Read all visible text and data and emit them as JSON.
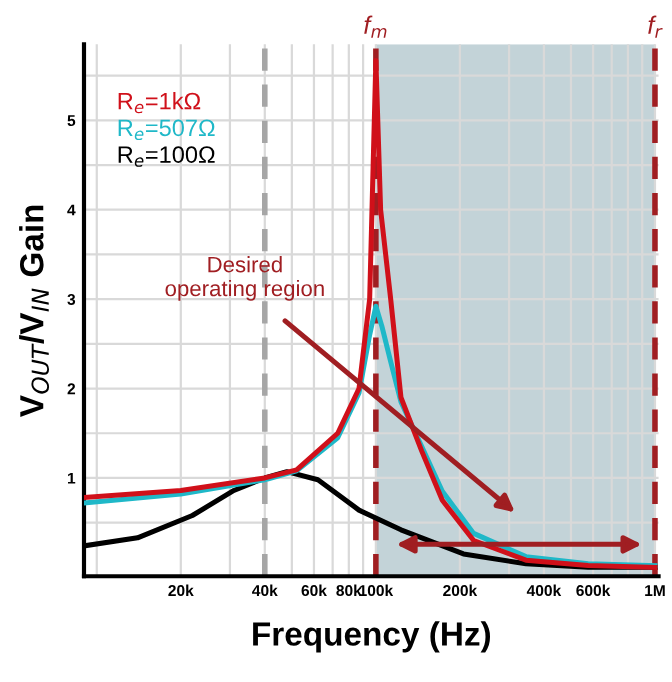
{
  "chart_data": {
    "type": "line",
    "xlabel": "Frequency (Hz)",
    "ylabel": "V$_{OUT}$/V$_{IN}$ Gain",
    "log": "x",
    "xlim": [
      9000,
      1030000
    ],
    "ylim": [
      -0.1,
      5.85
    ],
    "xticks": [
      {
        "value": 10000,
        "label": null
      },
      {
        "value": 20000,
        "label": "20k"
      },
      {
        "value": 30000,
        "label": null
      },
      {
        "value": 40000,
        "label": "40k"
      },
      {
        "value": 50000,
        "label": null
      },
      {
        "value": 60000,
        "label": "60k"
      },
      {
        "value": 70000,
        "label": null
      },
      {
        "value": 80000,
        "label": "80k"
      },
      {
        "value": 90000,
        "label": null
      },
      {
        "value": 100000,
        "label": "100k"
      },
      {
        "value": 200000,
        "label": "200k"
      },
      {
        "value": 300000,
        "label": null
      },
      {
        "value": 400000,
        "label": "400k"
      },
      {
        "value": 500000,
        "label": null
      },
      {
        "value": 600000,
        "label": "600k"
      },
      {
        "value": 700000,
        "label": null
      },
      {
        "value": 800000,
        "label": null
      },
      {
        "value": 900000,
        "label": null
      },
      {
        "value": 1000000,
        "label": "1M"
      }
    ],
    "yticks": [
      {
        "value": 0.5,
        "label": null
      },
      1,
      {
        "value": 1.5,
        "label": null
      },
      2,
      {
        "value": 2.5,
        "label": null
      },
      3,
      {
        "value": 3.5,
        "label": null
      },
      4,
      {
        "value": 4.5,
        "label": null
      },
      5,
      {
        "value": 5.5,
        "label": null
      }
    ],
    "grid": true,
    "legend": "top left",
    "series": [
      {
        "name": "R$_{e}$=100Ω",
        "color": "#000000",
        "x": [
          9000,
          14000,
          22000,
          31000,
          40000,
          48000,
          62000,
          87000,
          123000,
          206000,
          345000,
          576000,
          1000000
        ],
        "values": [
          0.24,
          0.33,
          0.58,
          0.86,
          1.0,
          1.07,
          0.98,
          0.64,
          0.42,
          0.15,
          0.04,
          0.0,
          0.0
        ]
      },
      {
        "name": "R$_{e}$=507Ω",
        "color": "#1fb8c8",
        "x": [
          9000,
          20000,
          40000,
          52000,
          73000,
          87000,
          95000,
          100000,
          105000,
          113000,
          123000,
          146000,
          173000,
          224000,
          345000,
          576000,
          1000000
        ],
        "values": [
          0.72,
          0.82,
          0.98,
          1.08,
          1.45,
          1.95,
          2.6,
          2.92,
          2.7,
          2.3,
          1.85,
          1.35,
          0.85,
          0.38,
          0.12,
          0.04,
          0.02
        ]
      },
      {
        "name": "R$_{e}$=1kΩ",
        "color": "#d0101a",
        "x": [
          9000,
          20000,
          40000,
          52000,
          73000,
          87000,
          95000,
          100000,
          104000,
          113000,
          123000,
          146000,
          173000,
          224000,
          345000,
          576000,
          1000000
        ],
        "values": [
          0.78,
          0.86,
          1.0,
          1.09,
          1.5,
          2.0,
          3.0,
          5.67,
          4.0,
          3.0,
          1.9,
          1.3,
          0.75,
          0.3,
          0.08,
          0.02,
          0.0
        ]
      }
    ],
    "bands": [
      {
        "axis": "x",
        "from": 100000,
        "to": 1000000,
        "color": "#c3d3d8"
      }
    ],
    "ref_lines": [
      {
        "axis": "x",
        "value": 40000,
        "color": "#a6a6a6",
        "line_style": "dashed"
      },
      {
        "axis": "x",
        "value": 100000,
        "label": "f$_{m}$",
        "color": "#a01e22",
        "line_style": "dashed"
      },
      {
        "axis": "x",
        "value": 1000000,
        "label": "f$_{r}$",
        "color": "#a01e22",
        "line_style": "dashed"
      }
    ],
    "annotations": [
      "Desired\noperating region"
    ]
  }
}
